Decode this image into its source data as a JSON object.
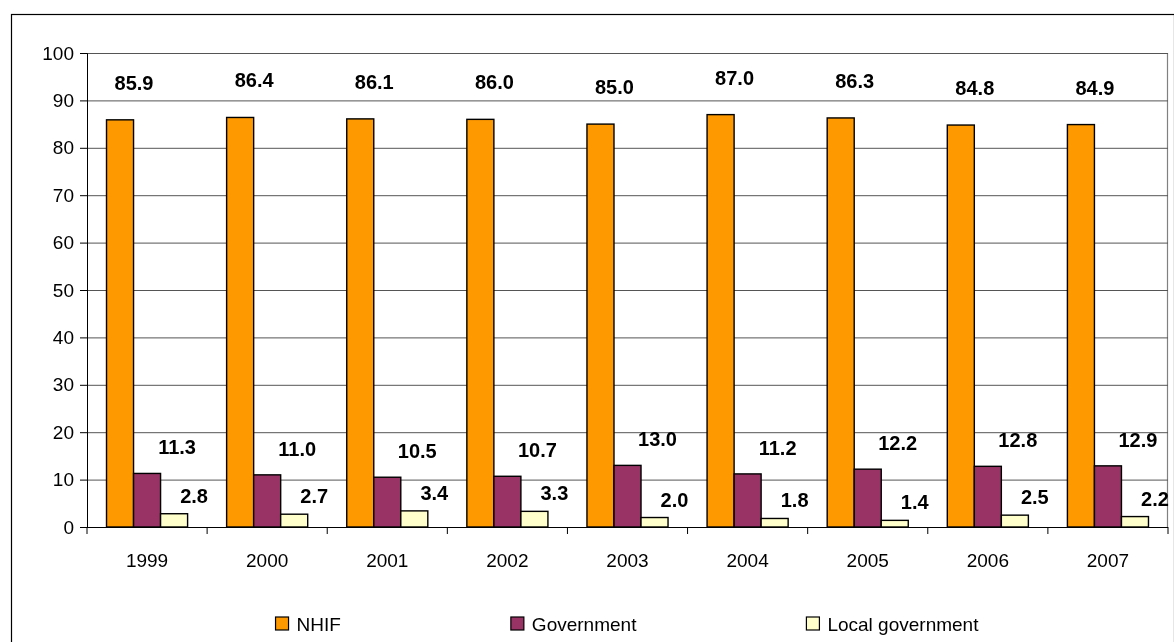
{
  "chart_data": {
    "type": "bar",
    "categories": [
      "1999",
      "2000",
      "2001",
      "2002",
      "2003",
      "2004",
      "2005",
      "2006",
      "2007"
    ],
    "series": [
      {
        "name": "NHIF",
        "color": "#ff9900",
        "values": [
          85.9,
          86.4,
          86.1,
          86.0,
          85.0,
          87.0,
          86.3,
          84.8,
          84.9
        ],
        "value_labels": [
          "85.9",
          "86.4",
          "86.1",
          "86.0",
          "85.0",
          "87.0",
          "86.3",
          "84.8",
          "84.9"
        ]
      },
      {
        "name": "Government",
        "color": "#993366",
        "values": [
          11.3,
          11.0,
          10.5,
          10.7,
          13.0,
          11.2,
          12.2,
          12.8,
          12.9
        ],
        "value_labels": [
          "11.3",
          "11.0",
          "10.5",
          "10.7",
          "13.0",
          "11.2",
          "12.2",
          "12.8",
          "12.9"
        ]
      },
      {
        "name": "Local government",
        "color": "#ffffcc",
        "values": [
          2.8,
          2.7,
          3.4,
          3.3,
          2.0,
          1.8,
          1.4,
          2.5,
          2.2
        ],
        "value_labels": [
          "2.8",
          "2.7",
          "3.4",
          "3.3",
          "2.0",
          "1.8",
          "1.4",
          "2.5",
          "2.2"
        ]
      }
    ],
    "ylim": [
      0,
      100
    ],
    "yticks": [
      0,
      10,
      20,
      30,
      40,
      50,
      60,
      70,
      80,
      90,
      100
    ],
    "grid": "y",
    "legend": "bottom"
  }
}
